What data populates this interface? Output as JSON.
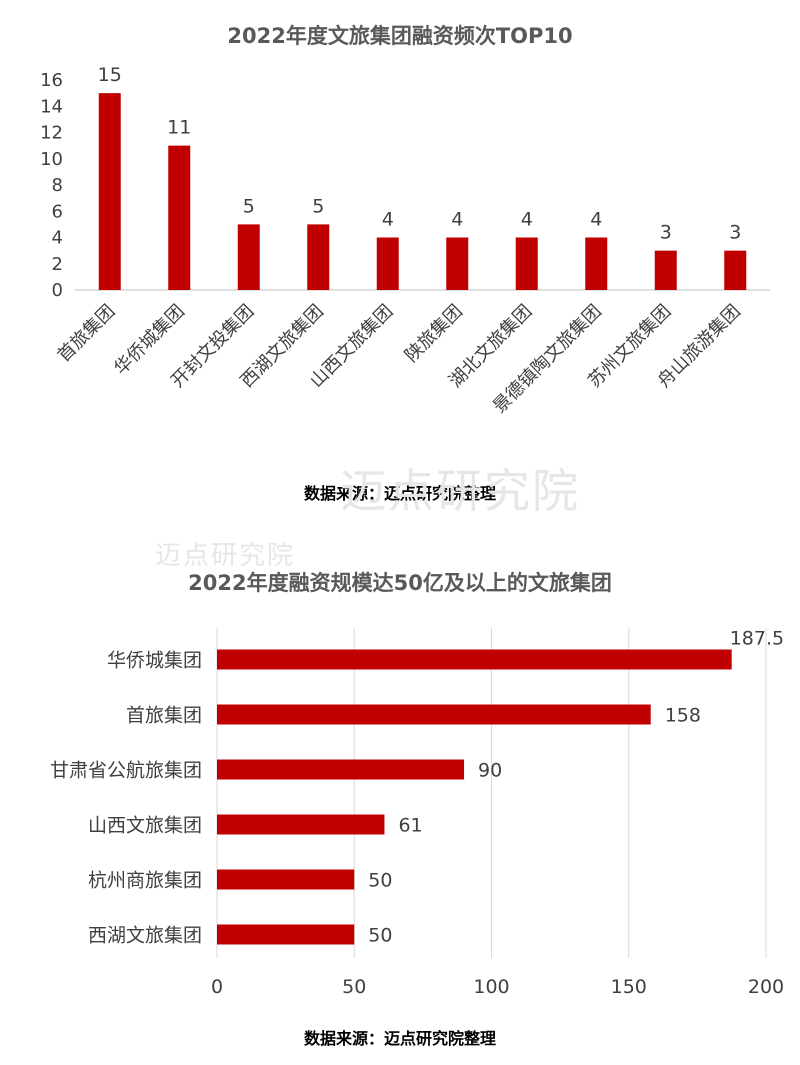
{
  "charts": [
    {
      "type": "bar",
      "title": "2022年度文旅集团融资频次TOP10",
      "categories": [
        "首旅集团",
        "华侨城集团",
        "开封文投集团",
        "西湖文旅集团",
        "山西文旅集团",
        "陕旅集团",
        "湖北文旅集团",
        "景德镇陶文旅集团",
        "苏州文旅集团",
        "舟山旅游集团"
      ],
      "values": [
        15,
        11,
        5,
        5,
        4,
        4,
        4,
        4,
        3,
        3
      ],
      "yticks": [
        "0",
        "2",
        "4",
        "6",
        "8",
        "10",
        "12",
        "14",
        "16"
      ],
      "ylim": [
        0,
        16
      ],
      "source": "数据来源：迈点研究院整理"
    },
    {
      "type": "bar",
      "orientation": "horizontal",
      "title": "2022年度融资规模达50亿及以上的文旅集团",
      "categories": [
        "华侨城集团",
        "首旅集团",
        "甘肃省公航旅集团",
        "山西文旅集团",
        "杭州商旅集团",
        "西湖文旅集团"
      ],
      "values": [
        187.5,
        158,
        90,
        61,
        50,
        50
      ],
      "labels": [
        "187.5",
        "158",
        "90",
        "61",
        "50",
        "50"
      ],
      "xticks": [
        "0",
        "50",
        "100",
        "150",
        "200"
      ],
      "xlim": [
        0,
        200
      ],
      "grid": true,
      "source": "数据来源：迈点研究院整理"
    }
  ],
  "watermark": {
    "text1": "迈点研究院",
    "text2": "迈点研究院"
  },
  "colors": {
    "bar": "#c00000",
    "axis": "#bfbfbf",
    "grid": "#d9d9d9"
  }
}
